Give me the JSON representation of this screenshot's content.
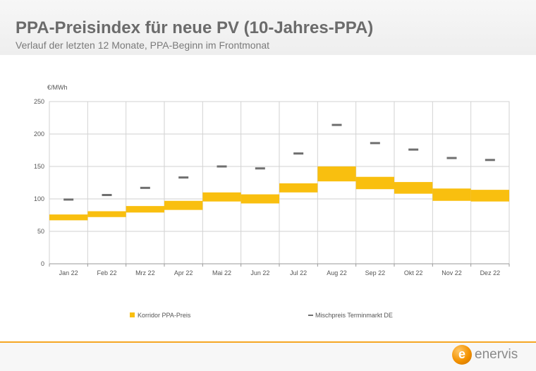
{
  "header": {
    "title": "PPA-Preisindex für neue PV (10-Jahres-PPA)",
    "subtitle": "Verlauf der letzten 12 Monate, PPA-Beginn im Frontmonat"
  },
  "logo": {
    "text": "enervis",
    "mark": "e"
  },
  "colors": {
    "corridor": "#f9bf0f",
    "marker": "#6f6f6f",
    "grid": "#d2d2d2",
    "accent_line": "#f5a623"
  },
  "chart_data": {
    "type": "bar",
    "ylabel": "€/MWh",
    "ylim": [
      0,
      250
    ],
    "yticks": [
      "0",
      "50",
      "100",
      "150",
      "200",
      "250"
    ],
    "categories": [
      "Jan 22",
      "Feb 22",
      "Mrz 22",
      "Apr 22",
      "Mai 22",
      "Jun 22",
      "Jul 22",
      "Aug 22",
      "Sep 22",
      "Okt 22",
      "Nov 22",
      "Dez 22"
    ],
    "series": [
      {
        "name": "Korridor PPA-Preis",
        "style": "floating-range",
        "low": [
          67,
          72,
          79,
          83,
          96,
          93,
          110,
          127,
          115,
          108,
          97,
          96
        ],
        "high": [
          76,
          81,
          89,
          97,
          110,
          107,
          124,
          150,
          134,
          126,
          116,
          114
        ]
      },
      {
        "name": "Mischpreis Terminmarkt DE",
        "style": "marker",
        "values": [
          99,
          106,
          117,
          133,
          150,
          147,
          170,
          214,
          186,
          176,
          163,
          160
        ]
      }
    ],
    "grid": true,
    "legend": "bottom"
  }
}
